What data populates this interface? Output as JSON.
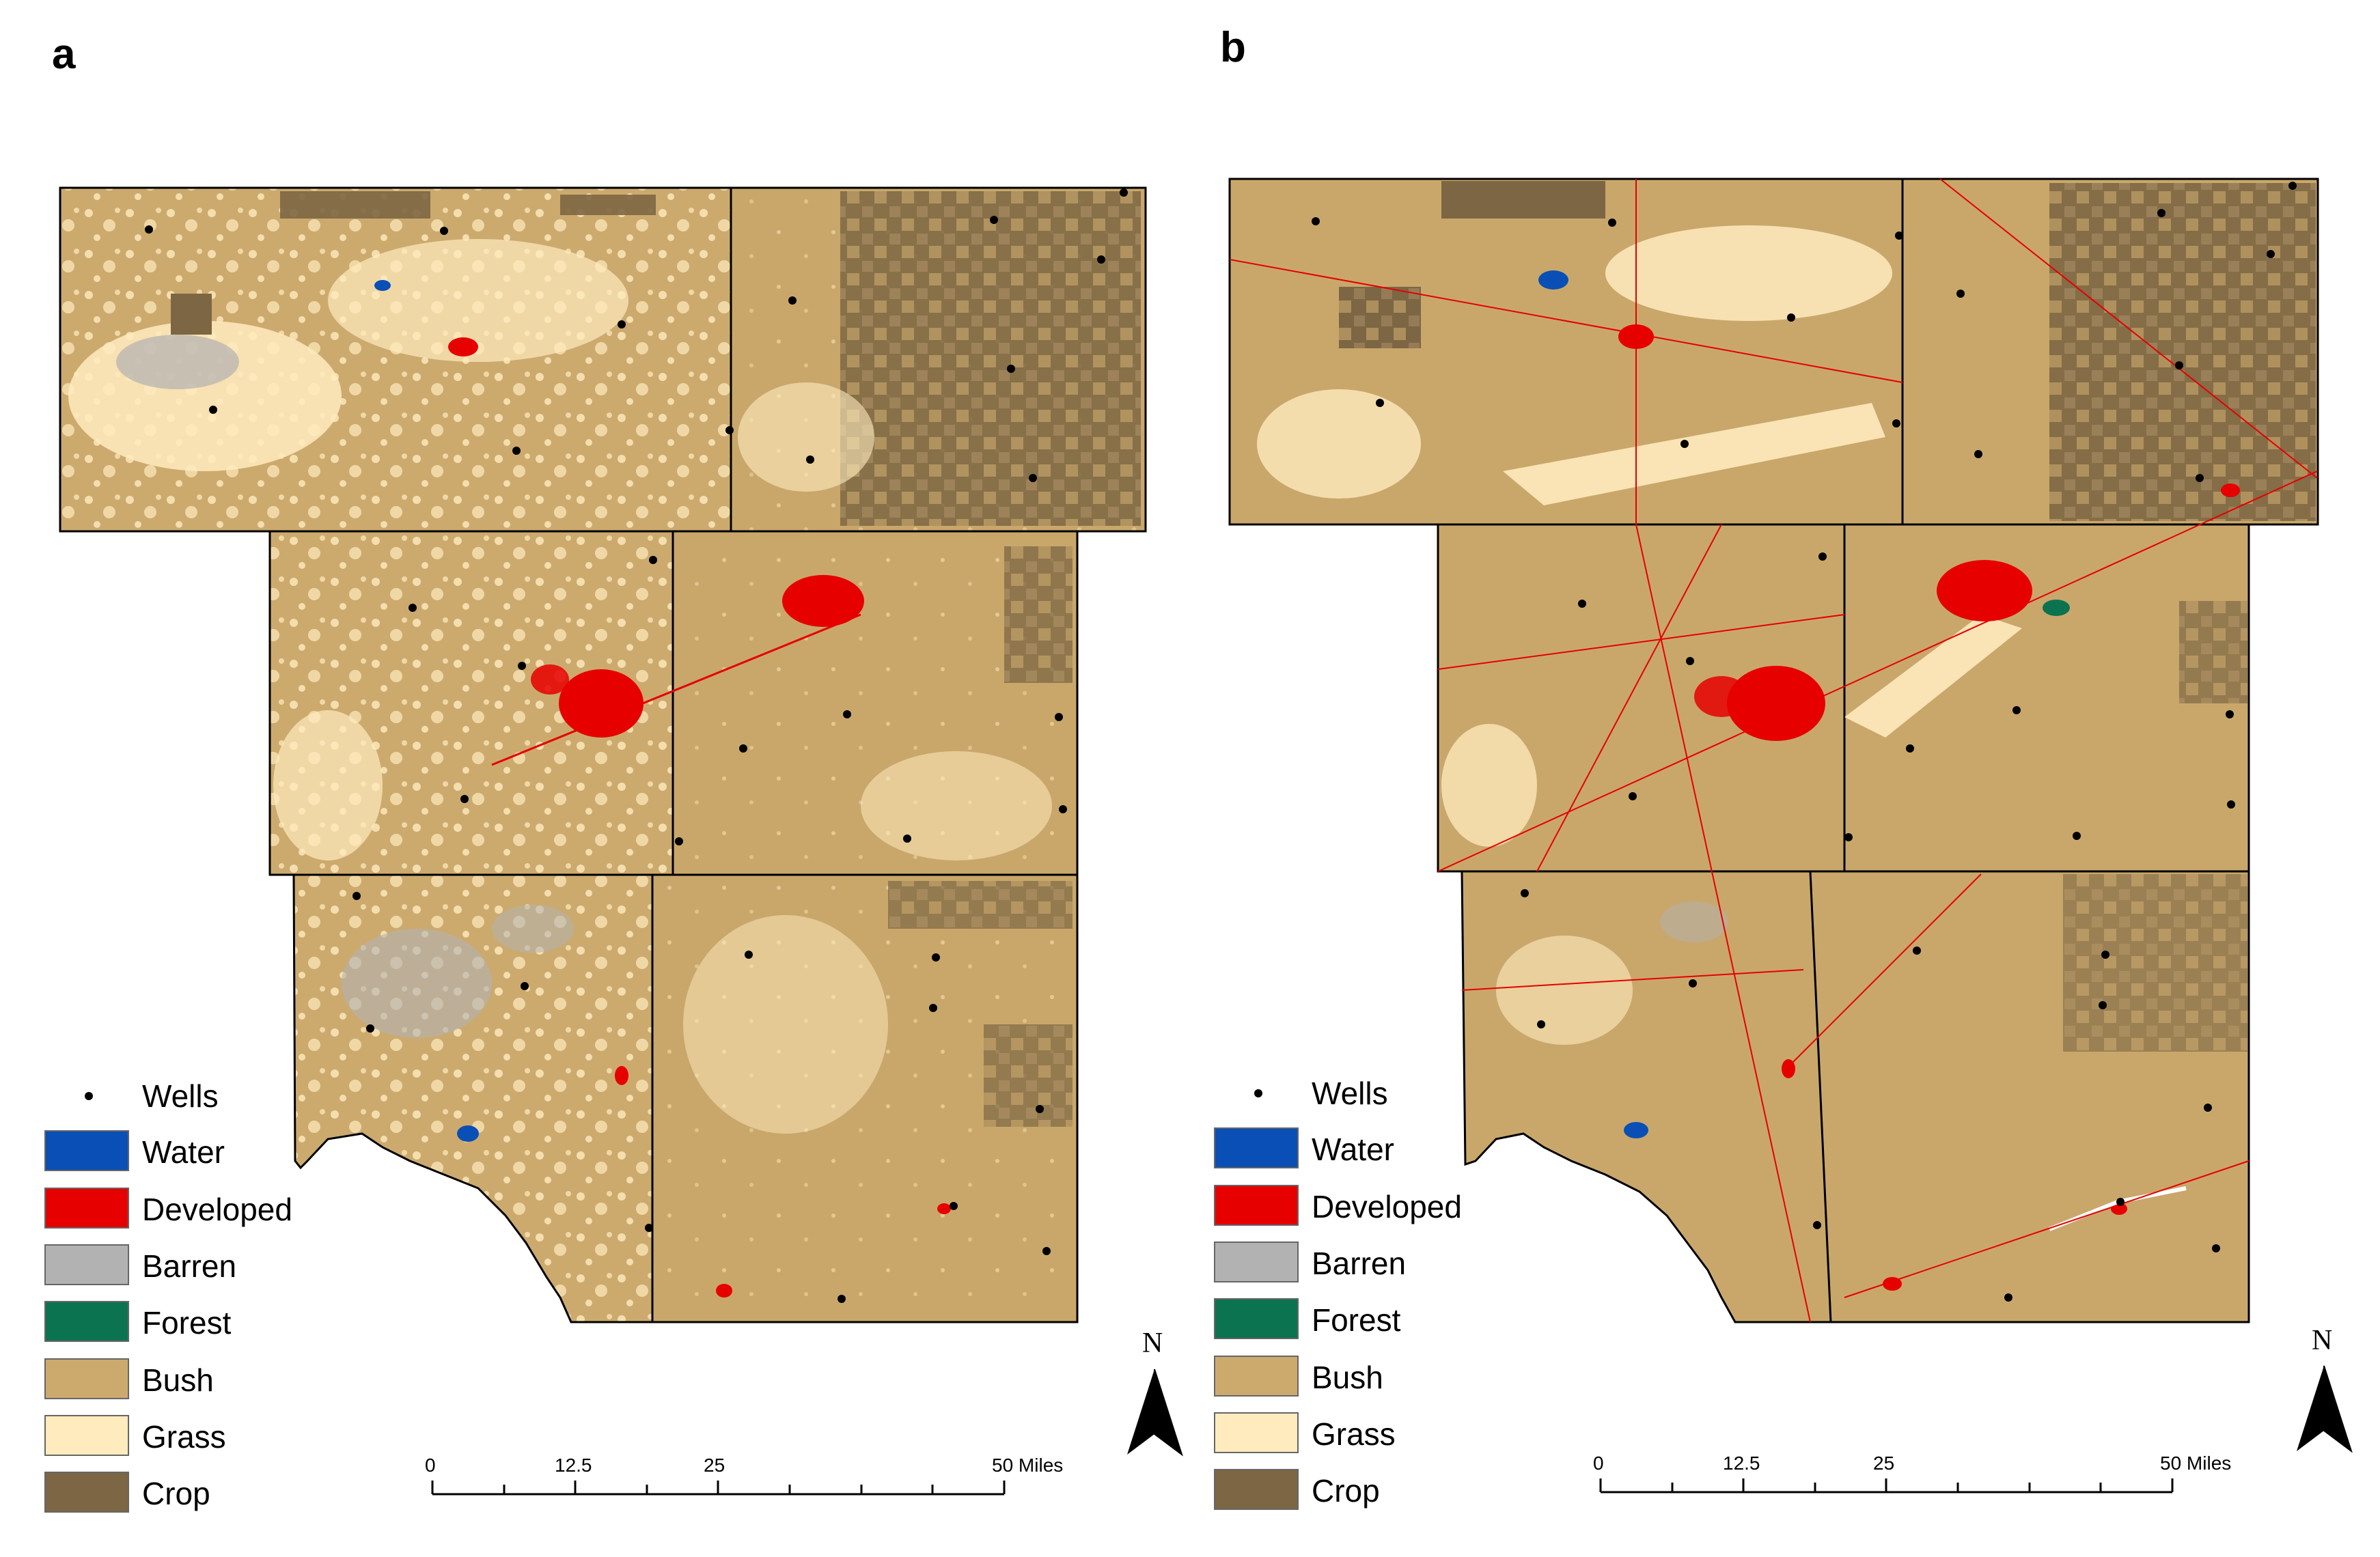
{
  "panels": [
    {
      "label": "a"
    },
    {
      "label": "b"
    }
  ],
  "legend": {
    "wells": "Wells",
    "items": [
      {
        "label": "Water",
        "color": "#0a4fb5"
      },
      {
        "label": "Developed",
        "color": "#e60000"
      },
      {
        "label": "Barren",
        "color": "#b2b2b2"
      },
      {
        "label": "Forest",
        "color": "#0b7350"
      },
      {
        "label": "Bush",
        "color": "#ccaa6e"
      },
      {
        "label": "Grass",
        "color": "#ffebbe"
      },
      {
        "label": "Crop",
        "color": "#7d6643"
      }
    ]
  },
  "scale_bar": {
    "ticks": [
      "0",
      "12.5",
      "25",
      "50 Miles"
    ]
  },
  "north_arrow": {
    "label": "N"
  }
}
